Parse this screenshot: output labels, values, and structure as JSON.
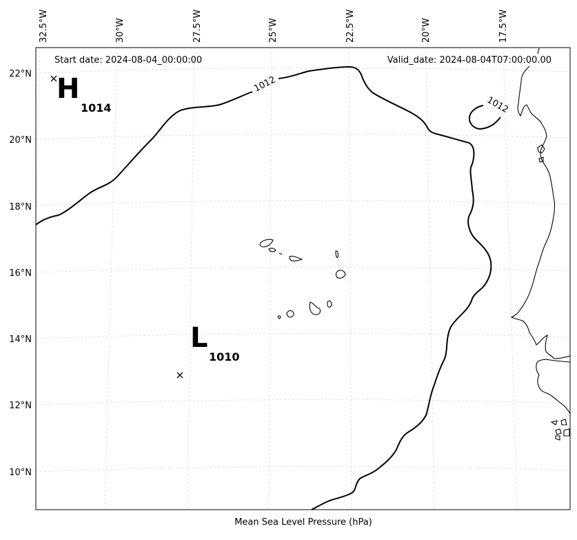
{
  "header": {
    "start_date": "Start date: 2024-08-04_00:00:00",
    "valid_date": "Valid_date: 2024-08-04T07:00:00.00"
  },
  "footer": {
    "caption": "Mean Sea Level Pressure (hPa)"
  },
  "axes": {
    "lon_labels": [
      "32.5°W",
      "30°W",
      "27.5°W",
      "25°W",
      "22.5°W",
      "20°W",
      "17.5°W"
    ],
    "lat_labels": [
      "22°N",
      "20°N",
      "18°N",
      "16°N",
      "14°N",
      "12°N",
      "10°N"
    ]
  },
  "pressure_systems": [
    {
      "type": "high",
      "letter": "H",
      "value": "1014"
    },
    {
      "type": "low",
      "letter": "L",
      "value": "1010"
    }
  ],
  "isobars": [
    {
      "label": "1012"
    },
    {
      "label": "1012"
    }
  ],
  "colors": {
    "isobar": "#000000",
    "grid": "#cccccc",
    "coast": "#000000"
  }
}
